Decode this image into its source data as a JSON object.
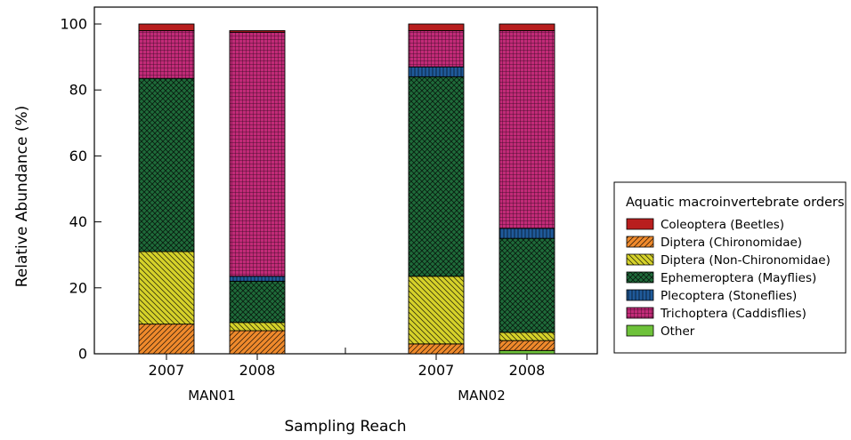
{
  "chart_data": {
    "type": "bar",
    "stacked": true,
    "xlabel": "Sampling Reach",
    "ylabel": "Relative Abundance (%)",
    "ylim": [
      0,
      100
    ],
    "yticks": [
      0,
      20,
      40,
      60,
      80,
      100
    ],
    "grid": false,
    "groups": [
      {
        "label": "MAN01",
        "categories": [
          "2007",
          "2008"
        ]
      },
      {
        "label": "MAN02",
        "categories": [
          "2007",
          "2008"
        ]
      }
    ],
    "categories": [
      "MAN01 2007",
      "MAN01 2008",
      "MAN02 2007",
      "MAN02 2008"
    ],
    "legend": {
      "title": "Aquatic macroinvertebrate orders",
      "placement": "right"
    },
    "series": [
      {
        "name": "Other",
        "color": "#6ec23a",
        "pattern": "none",
        "values": [
          0,
          0,
          0,
          1
        ]
      },
      {
        "name": "Diptera (Chironomidae)",
        "color": "#f08a2c",
        "pattern": "diag-right",
        "values": [
          9,
          7,
          3,
          3
        ]
      },
      {
        "name": "Diptera (Non-Chironomidae)",
        "color": "#d6d22a",
        "pattern": "diag-left",
        "values": [
          22,
          2.5,
          20.5,
          2.5
        ]
      },
      {
        "name": "Ephemeroptera (Mayflies)",
        "color": "#1f6b3a",
        "pattern": "crosshatch",
        "values": [
          52.5,
          12.5,
          60.5,
          28.5
        ]
      },
      {
        "name": "Plecoptera (Stoneflies)",
        "color": "#1f5a9a",
        "pattern": "vertical",
        "values": [
          0,
          1.5,
          3,
          3
        ]
      },
      {
        "name": "Trichoptera (Caddisflies)",
        "color": "#c22a78",
        "pattern": "grid",
        "values": [
          14.5,
          74,
          11,
          60
        ]
      },
      {
        "name": "Coleoptera (Beetles)",
        "color": "#b81e1e",
        "pattern": "none",
        "values": [
          2,
          0.5,
          2,
          2
        ]
      }
    ],
    "legend_order": [
      "Coleoptera (Beetles)",
      "Diptera (Chironomidae)",
      "Diptera (Non-Chironomidae)",
      "Ephemeroptera (Mayflies)",
      "Plecoptera (Stoneflies)",
      "Trichoptera (Caddisflies)",
      "Other"
    ]
  }
}
